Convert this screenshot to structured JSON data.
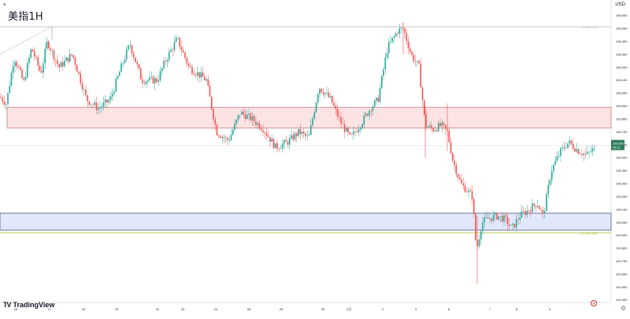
{
  "header": {
    "title": "美指1H",
    "currency": "USD",
    "menu_icon": "chevron-down-icon"
  },
  "footer": {
    "logo_mark": "TV",
    "logo_text": "TradingView",
    "settings_icon": "gear-icon",
    "go_realtime_icon": "arrow-icon"
  },
  "colors": {
    "up": "#26a69a",
    "down": "#ef5350",
    "resistance_zone_fill": "#fde4e4",
    "resistance_zone_border": "#c87c7c",
    "support_zone_fill": "#e1e8fb",
    "support_zone_border": "#4a5a8a",
    "fib_line": "#b5b5b5",
    "fib_1_line": "#a6c13a",
    "price_label": "#2e7d5b"
  },
  "chart_data": {
    "type": "candlestick",
    "x_tick_labels": [
      "16",
      "17",
      "18",
      "19",
      "22",
      "23",
      "24",
      "26",
      "29",
      "30",
      "1日",
      "2",
      "3",
      "6",
      "7",
      "8",
      "9"
    ],
    "y_tick_labels": [
      "106.600",
      "106.500",
      "106.400",
      "106.300",
      "106.200",
      "106.100",
      "106.000",
      "105.900",
      "105.800",
      "105.700",
      "105.600",
      "105.500",
      "105.400",
      "105.300",
      "105.200",
      "105.100",
      "105.000",
      "104.900",
      "104.800",
      "104.700",
      "104.600",
      "104.500",
      "104.400"
    ],
    "ylim": [
      104.38,
      106.72
    ],
    "current_price": {
      "value": 105.595,
      "label_line1": "105.595",
      "label_line2": "05:12"
    },
    "fib_levels": [
      {
        "label": "0 (106.513)",
        "value": 106.513
      },
      {
        "label": "1.00 (104.918)",
        "value": 104.918
      }
    ],
    "zones": [
      {
        "name": "resistance",
        "top": 105.89,
        "bottom": 105.73
      },
      {
        "name": "support",
        "top": 105.07,
        "bottom": 104.94
      }
    ],
    "series": [
      {
        "name": "price",
        "anchors": [
          [
            0,
            105.97
          ],
          [
            8,
            105.92
          ],
          [
            18,
            106.28
          ],
          [
            30,
            106.08
          ],
          [
            40,
            106.35
          ],
          [
            52,
            106.15
          ],
          [
            60,
            106.4
          ],
          [
            75,
            106.2
          ],
          [
            92,
            106.3
          ],
          [
            110,
            105.95
          ],
          [
            125,
            105.88
          ],
          [
            140,
            105.95
          ],
          [
            155,
            106.22
          ],
          [
            165,
            106.38
          ],
          [
            180,
            106.1
          ],
          [
            200,
            106.1
          ],
          [
            210,
            106.25
          ],
          [
            225,
            106.42
          ],
          [
            240,
            106.2
          ],
          [
            262,
            106.1
          ],
          [
            275,
            105.7
          ],
          [
            290,
            105.63
          ],
          [
            305,
            105.85
          ],
          [
            320,
            105.8
          ],
          [
            335,
            105.72
          ],
          [
            350,
            105.58
          ],
          [
            365,
            105.62
          ],
          [
            380,
            105.7
          ],
          [
            392,
            105.65
          ],
          [
            405,
            106.05
          ],
          [
            420,
            105.95
          ],
          [
            432,
            105.78
          ],
          [
            445,
            105.65
          ],
          [
            460,
            105.78
          ],
          [
            470,
            105.88
          ],
          [
            480,
            105.95
          ],
          [
            492,
            106.35
          ],
          [
            505,
            106.48
          ],
          [
            512,
            106.5
          ],
          [
            522,
            106.3
          ],
          [
            532,
            106.2
          ],
          [
            540,
            105.75
          ],
          [
            550,
            105.72
          ],
          [
            560,
            105.75
          ],
          [
            568,
            105.7
          ],
          [
            575,
            105.48
          ],
          [
            585,
            105.3
          ],
          [
            600,
            105.2
          ],
          [
            605,
            104.78
          ],
          [
            612,
            105.0
          ],
          [
            620,
            105.03
          ],
          [
            632,
            105.05
          ],
          [
            642,
            105.02
          ],
          [
            650,
            104.95
          ],
          [
            660,
            105.05
          ],
          [
            672,
            105.1
          ],
          [
            682,
            105.15
          ],
          [
            690,
            105.05
          ],
          [
            700,
            105.4
          ],
          [
            712,
            105.55
          ],
          [
            722,
            105.62
          ],
          [
            735,
            105.55
          ],
          [
            745,
            105.52
          ],
          [
            752,
            105.56
          ]
        ]
      }
    ]
  }
}
